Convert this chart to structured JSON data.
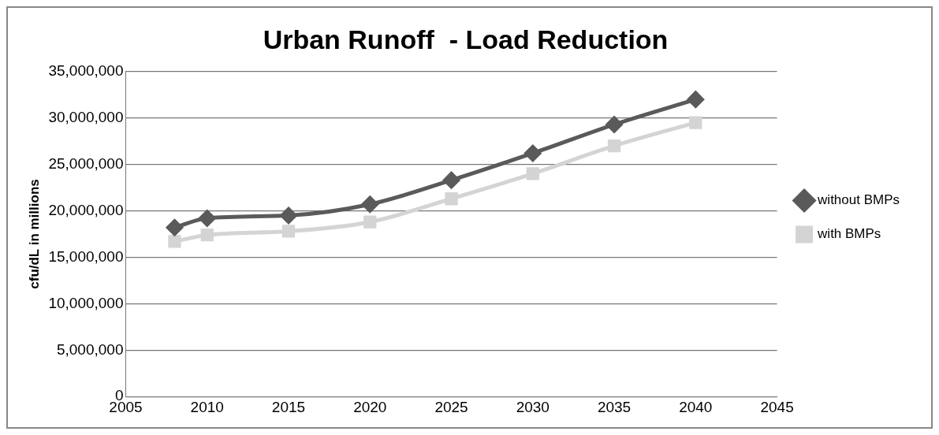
{
  "chart_data": {
    "type": "line",
    "title": "Urban Runoff  - Load Reduction",
    "ylabel": "cfu/dL in millions",
    "x": [
      2008,
      2010,
      2015,
      2020,
      2025,
      2030,
      2035,
      2040
    ],
    "series": [
      {
        "name": "without BMPs",
        "color": "#5a5a5a",
        "marker": "diamond",
        "values": [
          18200000,
          19200000,
          19500000,
          20700000,
          23300000,
          26200000,
          29300000,
          32000000
        ]
      },
      {
        "name": "with BMPs",
        "color": "#d4d4d4",
        "marker": "square",
        "values": [
          16700000,
          17400000,
          17800000,
          18800000,
          21300000,
          24000000,
          27000000,
          29500000
        ]
      }
    ],
    "xlim": [
      2005,
      2045
    ],
    "xticks": [
      2005,
      2010,
      2015,
      2020,
      2025,
      2030,
      2035,
      2040,
      2045
    ],
    "ylim": [
      0,
      35000000
    ],
    "yticks": [
      0,
      {
        "value": 5000000,
        "label": "5,000,000"
      },
      {
        "value": 10000000,
        "label": "10,000,000"
      },
      {
        "value": 15000000,
        "label": "15,000,000"
      },
      {
        "value": 20000000,
        "label": "20,000,000"
      },
      {
        "value": 25000000,
        "label": "25,000,000"
      },
      {
        "value": 30000000,
        "label": "30,000,000"
      },
      {
        "value": 35000000,
        "label": "35,000,000"
      }
    ],
    "grid": "y",
    "legend": "right",
    "line_style": "solid"
  }
}
